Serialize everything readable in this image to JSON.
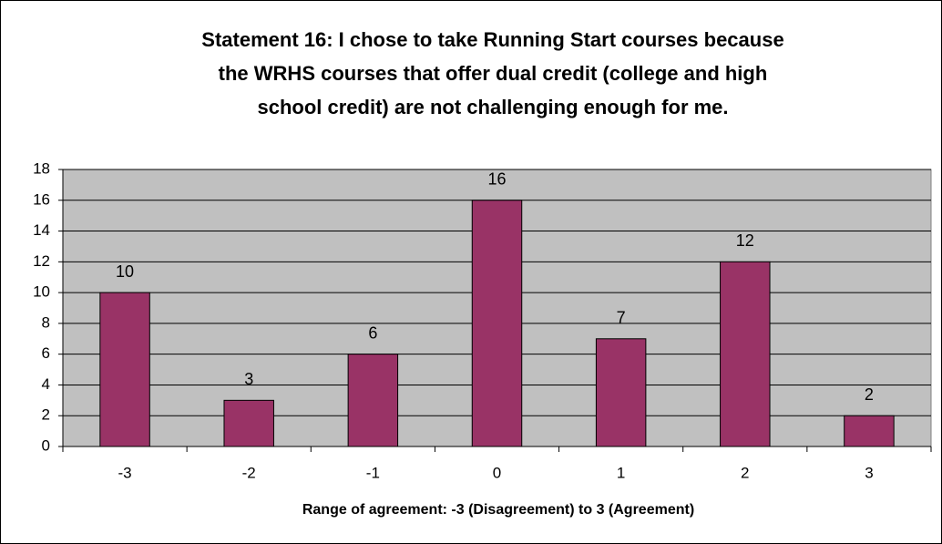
{
  "chart_data": {
    "type": "bar",
    "title": [
      "Statement 16:  I chose to take Running Start courses because",
      "the WRHS courses that offer dual credit (college and high",
      "school credit) are not challenging enough for me."
    ],
    "x_label": "Range of agreement:  -3 (Disagreement) to 3 (Agreement)",
    "categories": [
      "-3",
      "-2",
      "-1",
      "0",
      "1",
      "2",
      "3"
    ],
    "values": [
      10,
      3,
      6,
      16,
      7,
      12,
      2
    ],
    "color": "#993366",
    "ylim": [
      0,
      18
    ],
    "yticks": [
      0,
      2,
      4,
      6,
      8,
      10,
      12,
      14,
      16,
      18
    ],
    "grid": true,
    "plot_background": "#c0c0c0"
  }
}
